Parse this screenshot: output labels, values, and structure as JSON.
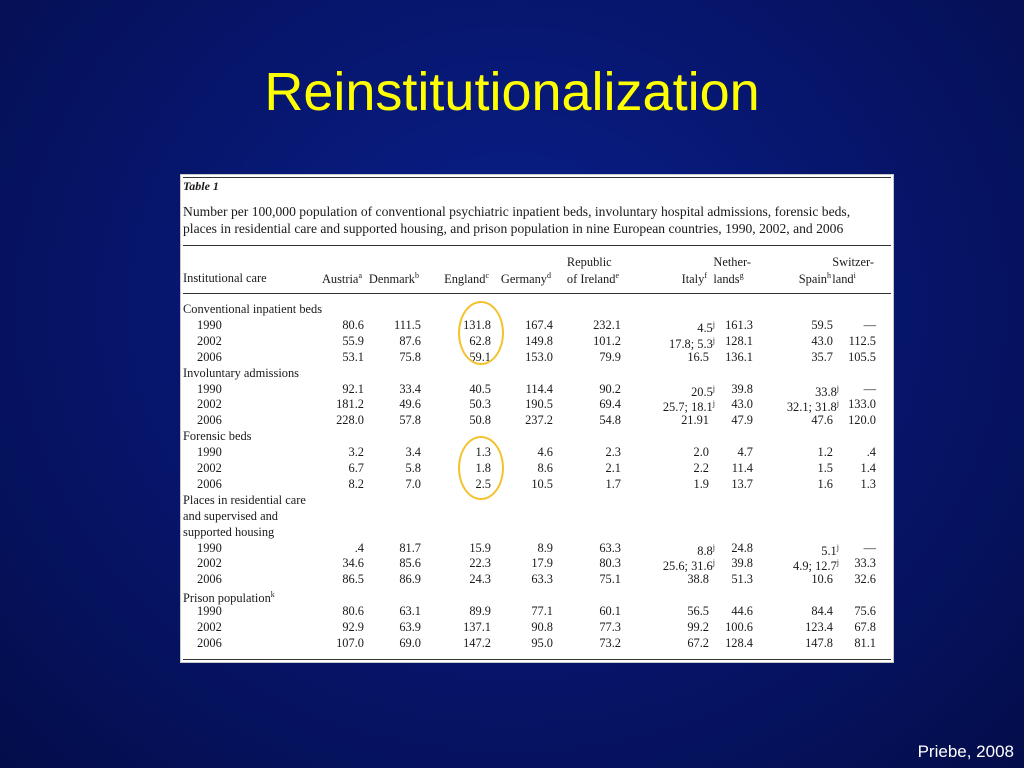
{
  "slide": {
    "title": "Reinstitutionalization",
    "citation": "Priebe, 2008"
  },
  "table": {
    "label": "Table 1",
    "caption_line1": "Number per 100,000 population of conventional psychiatric inpatient beds, involuntary hospital admissions, forensic beds,",
    "caption_line2": "places in residential care and supported housing, and prison population in nine European countries, 1990, 2002, and 2006",
    "header_first": "Institutional care",
    "columns": [
      {
        "line1": "",
        "line2": "Austria",
        "sup": "a"
      },
      {
        "line1": "",
        "line2": "Denmark",
        "sup": "b"
      },
      {
        "line1": "",
        "line2": "England",
        "sup": "c"
      },
      {
        "line1": "",
        "line2": "Germany",
        "sup": "d"
      },
      {
        "line1": "Republic",
        "line2": "of Ireland",
        "sup": "e"
      },
      {
        "line1": "",
        "line2": "Italy",
        "sup": "f"
      },
      {
        "line1": "Nether-",
        "line2": "lands",
        "sup": "g"
      },
      {
        "line1": "",
        "line2": "Spain",
        "sup": "h"
      },
      {
        "line1": "Switzer-",
        "line2": "land",
        "sup": "i"
      }
    ],
    "sections": [
      {
        "title_lines": [
          "Conventional inpatient beds"
        ],
        "title_sup": "",
        "rows": [
          {
            "year": "1990",
            "values": [
              {
                "v": "80.6"
              },
              {
                "v": "111.5"
              },
              {
                "v": "131.8"
              },
              {
                "v": "167.4"
              },
              {
                "v": "232.1"
              },
              {
                "v": "4.5",
                "sup": "j"
              },
              {
                "v": "161.3"
              },
              {
                "v": "59.5"
              },
              {
                "v": "—"
              }
            ]
          },
          {
            "year": "2002",
            "values": [
              {
                "v": "55.9"
              },
              {
                "v": "87.6"
              },
              {
                "v": "62.8"
              },
              {
                "v": "149.8"
              },
              {
                "v": "101.2"
              },
              {
                "v": "17.8; 5.3",
                "sup": "j"
              },
              {
                "v": "128.1"
              },
              {
                "v": "43.0"
              },
              {
                "v": "112.5"
              }
            ]
          },
          {
            "year": "2006",
            "values": [
              {
                "v": "53.1"
              },
              {
                "v": "75.8"
              },
              {
                "v": "59.1"
              },
              {
                "v": "153.0"
              },
              {
                "v": "79.9"
              },
              {
                "v": "16.5"
              },
              {
                "v": "136.1"
              },
              {
                "v": "35.7"
              },
              {
                "v": "105.5"
              }
            ]
          }
        ]
      },
      {
        "title_lines": [
          "Involuntary admissions"
        ],
        "title_sup": "",
        "rows": [
          {
            "year": "1990",
            "values": [
              {
                "v": "92.1"
              },
              {
                "v": "33.4"
              },
              {
                "v": "40.5"
              },
              {
                "v": "114.4"
              },
              {
                "v": "90.2"
              },
              {
                "v": "20.5",
                "sup": "j"
              },
              {
                "v": "39.8"
              },
              {
                "v": "33.8",
                "sup": "j"
              },
              {
                "v": "—"
              }
            ]
          },
          {
            "year": "2002",
            "values": [
              {
                "v": "181.2"
              },
              {
                "v": "49.6"
              },
              {
                "v": "50.3"
              },
              {
                "v": "190.5"
              },
              {
                "v": "69.4"
              },
              {
                "v": "25.7; 18.1",
                "sup": "j"
              },
              {
                "v": "43.0"
              },
              {
                "v": "32.1; 31.8",
                "sup": "j"
              },
              {
                "v": "133.0"
              }
            ]
          },
          {
            "year": "2006",
            "values": [
              {
                "v": "228.0"
              },
              {
                "v": "57.8"
              },
              {
                "v": "50.8"
              },
              {
                "v": "237.2"
              },
              {
                "v": "54.8"
              },
              {
                "v": "21.91"
              },
              {
                "v": "47.9"
              },
              {
                "v": "47.6"
              },
              {
                "v": "120.0"
              }
            ]
          }
        ]
      },
      {
        "title_lines": [
          "Forensic beds"
        ],
        "title_sup": "",
        "rows": [
          {
            "year": "1990",
            "values": [
              {
                "v": "3.2"
              },
              {
                "v": "3.4"
              },
              {
                "v": "1.3"
              },
              {
                "v": "4.6"
              },
              {
                "v": "2.3"
              },
              {
                "v": "2.0"
              },
              {
                "v": "4.7"
              },
              {
                "v": "1.2"
              },
              {
                "v": ".4"
              }
            ]
          },
          {
            "year": "2002",
            "values": [
              {
                "v": "6.7"
              },
              {
                "v": "5.8"
              },
              {
                "v": "1.8"
              },
              {
                "v": "8.6"
              },
              {
                "v": "2.1"
              },
              {
                "v": "2.2"
              },
              {
                "v": "11.4"
              },
              {
                "v": "1.5"
              },
              {
                "v": "1.4"
              }
            ]
          },
          {
            "year": "2006",
            "values": [
              {
                "v": "8.2"
              },
              {
                "v": "7.0"
              },
              {
                "v": "2.5"
              },
              {
                "v": "10.5"
              },
              {
                "v": "1.7"
              },
              {
                "v": "1.9"
              },
              {
                "v": "13.7"
              },
              {
                "v": "1.6"
              },
              {
                "v": "1.3"
              }
            ]
          }
        ]
      },
      {
        "title_lines": [
          "Places in residential care",
          "and supervised and",
          "supported housing"
        ],
        "title_sup": "",
        "rows": [
          {
            "year": "1990",
            "values": [
              {
                "v": ".4"
              },
              {
                "v": "81.7"
              },
              {
                "v": "15.9"
              },
              {
                "v": "8.9"
              },
              {
                "v": "63.3"
              },
              {
                "v": "8.8",
                "sup": "j"
              },
              {
                "v": "24.8"
              },
              {
                "v": "5.1",
                "sup": "j"
              },
              {
                "v": "—"
              }
            ]
          },
          {
            "year": "2002",
            "values": [
              {
                "v": "34.6"
              },
              {
                "v": "85.6"
              },
              {
                "v": "22.3"
              },
              {
                "v": "17.9"
              },
              {
                "v": "80.3"
              },
              {
                "v": "25.6; 31.6",
                "sup": "j"
              },
              {
                "v": "39.8"
              },
              {
                "v": "4.9; 12.7",
                "sup": "j"
              },
              {
                "v": "33.3"
              }
            ]
          },
          {
            "year": "2006",
            "values": [
              {
                "v": "86.5"
              },
              {
                "v": "86.9"
              },
              {
                "v": "24.3"
              },
              {
                "v": "63.3"
              },
              {
                "v": "75.1"
              },
              {
                "v": "38.8"
              },
              {
                "v": "51.3"
              },
              {
                "v": "10.6"
              },
              {
                "v": "32.6"
              }
            ]
          }
        ]
      },
      {
        "title_lines": [
          "Prison population"
        ],
        "title_sup": "k",
        "rows": [
          {
            "year": "1990",
            "values": [
              {
                "v": "80.6"
              },
              {
                "v": "63.1"
              },
              {
                "v": "89.9"
              },
              {
                "v": "77.1"
              },
              {
                "v": "60.1"
              },
              {
                "v": "56.5"
              },
              {
                "v": "44.6"
              },
              {
                "v": "84.4"
              },
              {
                "v": "75.6"
              }
            ]
          },
          {
            "year": "2002",
            "values": [
              {
                "v": "92.9"
              },
              {
                "v": "63.9"
              },
              {
                "v": "137.1"
              },
              {
                "v": "90.8"
              },
              {
                "v": "77.3"
              },
              {
                "v": "99.2"
              },
              {
                "v": "100.6"
              },
              {
                "v": "123.4"
              },
              {
                "v": "67.8"
              }
            ]
          },
          {
            "year": "2006",
            "values": [
              {
                "v": "107.0"
              },
              {
                "v": "69.0"
              },
              {
                "v": "147.2"
              },
              {
                "v": "95.0"
              },
              {
                "v": "73.2"
              },
              {
                "v": "67.2"
              },
              {
                "v": "128.4"
              },
              {
                "v": "147.8"
              },
              {
                "v": "81.1"
              }
            ]
          }
        ]
      }
    ]
  },
  "colors": {
    "background": "#06156a",
    "title": "#ffff00",
    "highlight_oval": "#f3c22e",
    "citation": "#ffffff"
  }
}
